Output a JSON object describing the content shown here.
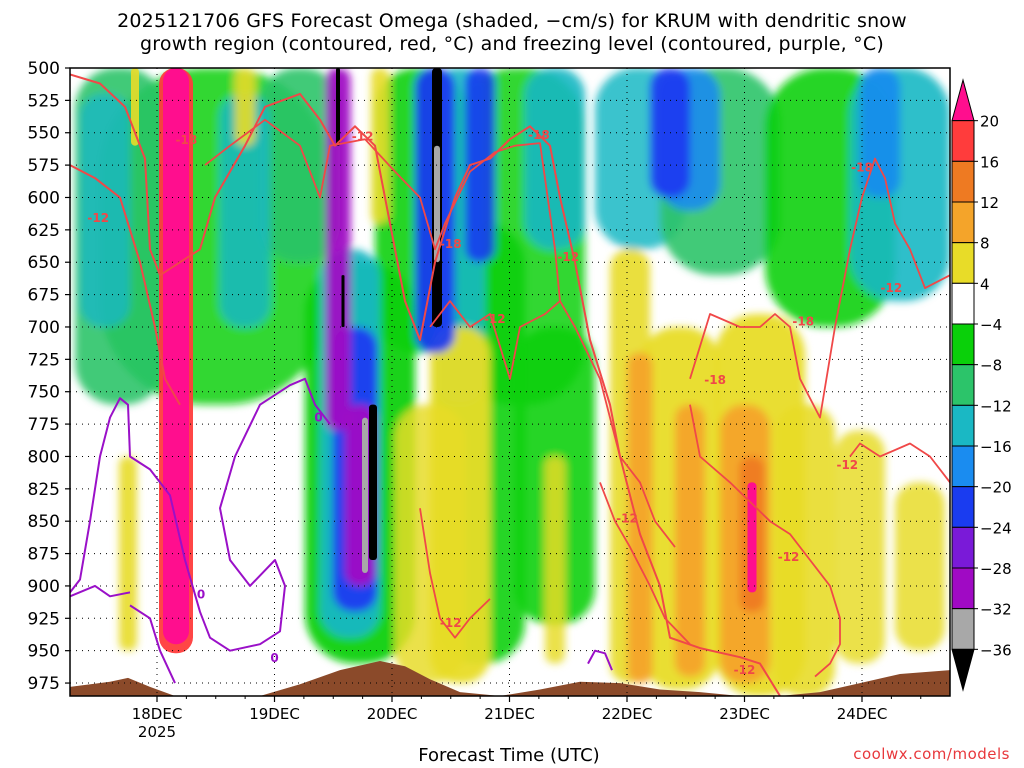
{
  "title_line1": "2025121706 GFS Forecast Omega (shaded, −cm/s) for KRUM with dendritic snow",
  "title_line2": "growth region (contoured, red, °C) and freezing level (contoured, purple, °C)",
  "credit": "coolwx.com/models",
  "chart_data": {
    "type": "heatmap",
    "xlabel": "Forecast Time (UTC)",
    "x_ticks": [
      "18DEC",
      "19DEC",
      "20DEC",
      "21DEC",
      "22DEC",
      "23DEC",
      "24DEC"
    ],
    "x_year_label": "2025",
    "y_ticks": [
      500,
      525,
      550,
      575,
      600,
      625,
      650,
      675,
      700,
      725,
      750,
      775,
      800,
      825,
      850,
      875,
      900,
      925,
      950,
      975
    ],
    "ylim": [
      500,
      985
    ],
    "y_inverted": true,
    "grid": true,
    "colorbar": {
      "ticks": [
        "20",
        "16",
        "12",
        "8",
        "4",
        "−4",
        "−8",
        "−12",
        "−16",
        "−20",
        "−24",
        "−28",
        "−32",
        "−36"
      ],
      "colors": [
        "#ff0e8e",
        "#ff3c3c",
        "#ee7a22",
        "#f4a42a",
        "#e8dc28",
        "#ffffff",
        "#0ad00a",
        "#2cc46a",
        "#1ab8c4",
        "#1a8cf0",
        "#1a3cf0",
        "#7a1ad8",
        "#a00ac4",
        "#a8a8a8",
        "#000000"
      ]
    },
    "omega_features": [
      {
        "time": "17/21Z",
        "level_top": 500,
        "level_bottom": 950,
        "value": "+20"
      },
      {
        "time": "20/09Z",
        "level_top": 500,
        "level_bottom": 700,
        "value": "−36"
      },
      {
        "time": "19/21Z",
        "level_top": 750,
        "level_bottom": 880,
        "value": "−36"
      },
      {
        "time": "23/00Z",
        "level_top": 780,
        "level_bottom": 900,
        "value": "+16"
      }
    ],
    "contour_labels": [
      {
        "text": "-18",
        "time": "18/06Z",
        "level": 555
      },
      {
        "text": "-12",
        "time": "17/12Z",
        "level": 615
      },
      {
        "text": "-12",
        "time": "19/18Z",
        "level": 552
      },
      {
        "text": "-18",
        "time": "20/12Z",
        "level": 635
      },
      {
        "text": "-18",
        "time": "21/06Z",
        "level": 551
      },
      {
        "text": "-12",
        "time": "21/12Z",
        "level": 645
      },
      {
        "text": "-12",
        "time": "20/21Z",
        "level": 693
      },
      {
        "text": "-18",
        "time": "22/18Z",
        "level": 740
      },
      {
        "text": "-18",
        "time": "23/12Z",
        "level": 695
      },
      {
        "text": "-18",
        "time": "24/00Z",
        "level": 576
      },
      {
        "text": "-12",
        "time": "24/06Z",
        "level": 669
      },
      {
        "text": "-12",
        "time": "23/21Z",
        "level": 806
      },
      {
        "text": "-12",
        "time": "22/00Z",
        "level": 847
      },
      {
        "text": "-12",
        "time": "23/09Z",
        "level": 877
      },
      {
        "text": "-12",
        "time": "20/12Z",
        "level": 928
      },
      {
        "text": "-12",
        "time": "23/00Z",
        "level": 964
      },
      {
        "text": "0",
        "time": "18/09Z",
        "level": 906
      },
      {
        "text": "0",
        "time": "19/09Z",
        "level": 769
      },
      {
        "text": "0",
        "time": "19/00Z",
        "level": 955
      }
    ]
  }
}
